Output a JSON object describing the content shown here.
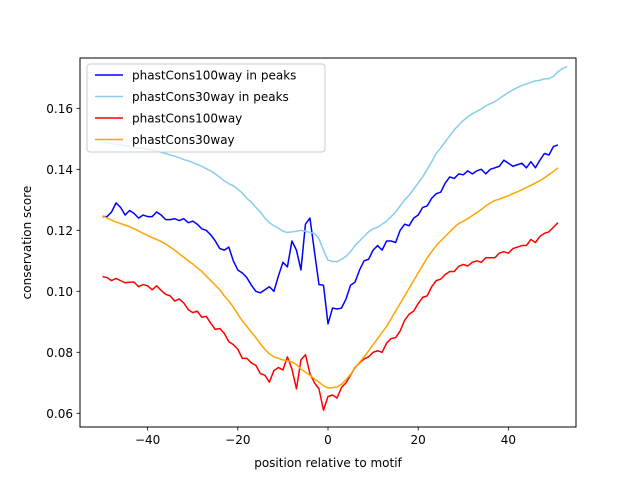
{
  "chart_data": {
    "type": "line",
    "title": "",
    "xlabel": "position relative to motif",
    "ylabel": "conservation score",
    "xlim": [
      -55.0,
      55.0
    ],
    "ylim": [
      0.0555,
      0.1765
    ],
    "xticks": [
      -40,
      -20,
      0,
      20,
      40
    ],
    "yticks": [
      0.06,
      0.08,
      0.1,
      0.12,
      0.14,
      0.16
    ],
    "grid": false,
    "legend_position": "top-left",
    "x_start": -50,
    "x_step": 1,
    "series": [
      {
        "name": "phastCons100way in peaks",
        "color": "#0000ff",
        "values": [
          0.1245,
          0.1245,
          0.126,
          0.129,
          0.1275,
          0.125,
          0.1265,
          0.1255,
          0.124,
          0.125,
          0.1245,
          0.1245,
          0.126,
          0.125,
          0.1235,
          0.1235,
          0.1238,
          0.1232,
          0.1238,
          0.1225,
          0.123,
          0.122,
          0.1205,
          0.12,
          0.1185,
          0.1165,
          0.114,
          0.1135,
          0.1145,
          0.11,
          0.107,
          0.106,
          0.1045,
          0.102,
          0.1,
          0.0995,
          0.1005,
          0.1015,
          0.1,
          0.105,
          0.1095,
          0.108,
          0.1165,
          0.1135,
          0.107,
          0.122,
          0.124,
          0.113,
          0.1022,
          0.102,
          0.0893,
          0.0945,
          0.0942,
          0.0945,
          0.0975,
          0.102,
          0.103,
          0.107,
          0.11,
          0.1105,
          0.1135,
          0.115,
          0.1135,
          0.1165,
          0.1165,
          0.116,
          0.12,
          0.122,
          0.1215,
          0.124,
          0.125,
          0.1275,
          0.128,
          0.1305,
          0.132,
          0.1325,
          0.1355,
          0.1375,
          0.137,
          0.1385,
          0.1382,
          0.1395,
          0.1385,
          0.1395,
          0.14,
          0.1385,
          0.14,
          0.1405,
          0.141,
          0.143,
          0.142,
          0.141,
          0.1415,
          0.142,
          0.1405,
          0.1425,
          0.1405,
          0.143,
          0.1452,
          0.1447,
          0.1475,
          0.148
        ]
      },
      {
        "name": "phastCons30way in peaks",
        "color": "#87ceeb",
        "values": [
          0.1488,
          0.1487,
          0.1484,
          0.1482,
          0.148,
          0.1477,
          0.1475,
          0.1472,
          0.147,
          0.1468,
          0.1466,
          0.1463,
          0.146,
          0.1456,
          0.1452,
          0.1447,
          0.1443,
          0.1438,
          0.1432,
          0.1428,
          0.1422,
          0.1416,
          0.141,
          0.1402,
          0.1395,
          0.1385,
          0.1374,
          0.1362,
          0.1353,
          0.1346,
          0.1335,
          0.1322,
          0.1305,
          0.1292,
          0.1275,
          0.126,
          0.124,
          0.1225,
          0.1215,
          0.1207,
          0.1197,
          0.1193,
          0.1195,
          0.1197,
          0.12,
          0.1197,
          0.1193,
          0.119,
          0.1172,
          0.1135,
          0.1102,
          0.1098,
          0.1097,
          0.1105,
          0.1115,
          0.113,
          0.115,
          0.1165,
          0.118,
          0.1195,
          0.1205,
          0.121,
          0.122,
          0.123,
          0.1245,
          0.126,
          0.128,
          0.13,
          0.1315,
          0.1335,
          0.1355,
          0.1375,
          0.14,
          0.1425,
          0.1452,
          0.147,
          0.149,
          0.151,
          0.153,
          0.1545,
          0.156,
          0.1572,
          0.1582,
          0.159,
          0.1598,
          0.1608,
          0.1615,
          0.1622,
          0.1632,
          0.1642,
          0.1652,
          0.166,
          0.1668,
          0.1675,
          0.168,
          0.1685,
          0.169,
          0.1692,
          0.1697,
          0.1697,
          0.1705,
          0.172,
          0.173,
          0.1737
        ]
      },
      {
        "name": "phastCons100way",
        "color": "#ff0000",
        "values": [
          0.1048,
          0.1045,
          0.1035,
          0.1042,
          0.1035,
          0.1028,
          0.103,
          0.103,
          0.1015,
          0.1022,
          0.1018,
          0.1005,
          0.1018,
          0.1003,
          0.099,
          0.0985,
          0.0968,
          0.0975,
          0.0962,
          0.094,
          0.093,
          0.0935,
          0.0915,
          0.0918,
          0.0895,
          0.0875,
          0.0878,
          0.0862,
          0.0835,
          0.0825,
          0.081,
          0.078,
          0.078,
          0.0765,
          0.0757,
          0.073,
          0.0725,
          0.0702,
          0.074,
          0.075,
          0.0742,
          0.0785,
          0.0745,
          0.068,
          0.0775,
          0.0792,
          0.073,
          0.07,
          0.068,
          0.061,
          0.0655,
          0.066,
          0.065,
          0.0685,
          0.07,
          0.0725,
          0.075,
          0.0765,
          0.0778,
          0.0785,
          0.08,
          0.0805,
          0.08,
          0.083,
          0.0845,
          0.0848,
          0.087,
          0.0905,
          0.0925,
          0.0935,
          0.096,
          0.098,
          0.0985,
          0.1015,
          0.1035,
          0.104,
          0.1055,
          0.1065,
          0.1065,
          0.1082,
          0.1088,
          0.1083,
          0.1095,
          0.11,
          0.1095,
          0.111,
          0.111,
          0.111,
          0.1125,
          0.113,
          0.1125,
          0.114,
          0.1145,
          0.115,
          0.115,
          0.117,
          0.116,
          0.118,
          0.119,
          0.1195,
          0.121,
          0.1225
        ]
      },
      {
        "name": "phastCons30way",
        "color": "#ffa500",
        "values": [
          0.1248,
          0.124,
          0.1233,
          0.1227,
          0.1222,
          0.1217,
          0.1212,
          0.1205,
          0.1198,
          0.119,
          0.1183,
          0.1176,
          0.117,
          0.1163,
          0.1155,
          0.1145,
          0.1135,
          0.1123,
          0.1112,
          0.11,
          0.109,
          0.1077,
          0.1065,
          0.105,
          0.1035,
          0.102,
          0.1005,
          0.0985,
          0.0968,
          0.0948,
          0.0925,
          0.0903,
          0.0885,
          0.0866,
          0.0848,
          0.0828,
          0.081,
          0.0795,
          0.0785,
          0.078,
          0.0775,
          0.0772,
          0.0768,
          0.076,
          0.0745,
          0.0735,
          0.0725,
          0.0712,
          0.0702,
          0.069,
          0.0683,
          0.0684,
          0.0686,
          0.0695,
          0.071,
          0.0728,
          0.0748,
          0.0767,
          0.0785,
          0.0805,
          0.0825,
          0.0845,
          0.0865,
          0.0885,
          0.091,
          0.0935,
          0.096,
          0.0985,
          0.101,
          0.1035,
          0.106,
          0.1085,
          0.111,
          0.113,
          0.115,
          0.1165,
          0.118,
          0.1195,
          0.121,
          0.1222,
          0.123,
          0.1238,
          0.1248,
          0.1258,
          0.1268,
          0.128,
          0.129,
          0.1298,
          0.1302,
          0.1308,
          0.1313,
          0.132,
          0.1326,
          0.1333,
          0.134,
          0.1347,
          0.1355,
          0.1363,
          0.1372,
          0.1383,
          0.1393,
          0.1405
        ]
      }
    ]
  }
}
